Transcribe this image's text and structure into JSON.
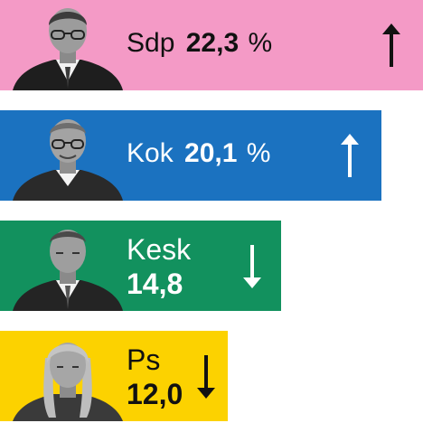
{
  "chart_data": {
    "type": "bar",
    "orientation": "horizontal",
    "categories": [
      "Sdp",
      "Kok",
      "Kesk",
      "Ps"
    ],
    "values": [
      22.3,
      20.1,
      14.8,
      12.0
    ],
    "value_labels": [
      "22,3",
      "20,1",
      "14,8",
      "12,0"
    ],
    "unit_labels": [
      "%",
      "%",
      "",
      ""
    ],
    "trend": [
      "up",
      "up",
      "down",
      "down"
    ],
    "colors": [
      "#f49ac6",
      "#1b72c0",
      "#12915e",
      "#fcd200"
    ],
    "xlim": [
      0,
      22.3
    ],
    "grid": false,
    "legend": "none"
  }
}
